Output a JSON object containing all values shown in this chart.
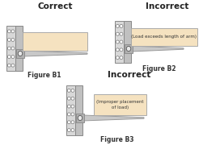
{
  "bg_color": "#ffffff",
  "title_correct": "Correct",
  "title_incorrect": "Incorrect",
  "label_b1": "Figure B1",
  "label_b2": "Figure B2",
  "label_b3": "Figure B3",
  "note_b2": "(Load exceeds length of arm)",
  "note_b3": "(Improper placement\nof load)",
  "col_left_color": "#d8d8d8",
  "col_right_color": "#c0c0c0",
  "col_border": "#888888",
  "arm_color": "#c8c8c8",
  "arm_border": "#999999",
  "load_color": "#f5e2c0",
  "load_border": "#aaaaaa",
  "note_box_color": "#f5e2c0",
  "note_box_border": "#999999",
  "circle_fill": "#ffffff",
  "circle_edge": "#777777",
  "text_color": "#222222",
  "label_color": "#333333"
}
